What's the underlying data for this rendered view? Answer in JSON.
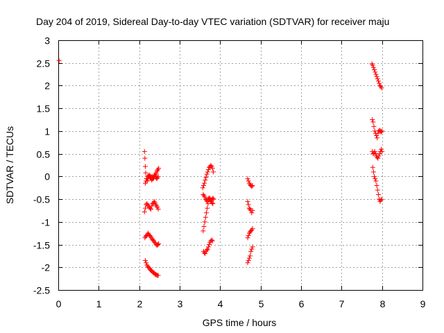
{
  "chart_data": {
    "type": "scatter",
    "title": "Day 204 of 2019, Sidereal Day-to-day VTEC variation (SDTVAR) for receiver maju",
    "xlabel": "GPS time / hours",
    "ylabel": "SDTVAR / TECUs",
    "xlim": [
      0,
      9
    ],
    "ylim": [
      -2.5,
      3
    ],
    "xticks": [
      0,
      1,
      2,
      3,
      4,
      5,
      6,
      7,
      8,
      9
    ],
    "yticks": [
      -2.5,
      -2,
      -1.5,
      -1,
      -0.5,
      0,
      0.5,
      1,
      1.5,
      2,
      2.5,
      3
    ],
    "xtick_labels": [
      "0",
      "1",
      "2",
      "3",
      "4",
      "5",
      "6",
      "7",
      "8",
      "9"
    ],
    "ytick_labels": [
      "-2.5",
      "-2",
      "-1.5",
      "-1",
      "-0.5",
      "0",
      "0.5",
      "1",
      "1.5",
      "2",
      "2.5",
      "3"
    ],
    "grid": true,
    "marker_color": "#ff0000",
    "marker": "+",
    "series": [
      {
        "name": "SDTVAR",
        "x": [
          0.02,
          2.13,
          2.14,
          2.15,
          2.16,
          2.18,
          2.2,
          2.22,
          2.24,
          2.26,
          2.28,
          2.3,
          2.32,
          2.34,
          2.36,
          2.38,
          2.4,
          2.42,
          2.44,
          2.46,
          2.48,
          2.13,
          2.15,
          2.17,
          2.19,
          2.21,
          2.23,
          2.25,
          2.27,
          2.29,
          2.31,
          2.33,
          2.35,
          2.37,
          2.39,
          2.41,
          2.43,
          2.45,
          2.47,
          2.14,
          2.16,
          2.18,
          2.2,
          2.22,
          2.24,
          2.26,
          2.28,
          2.3,
          2.32,
          2.34,
          2.36,
          2.38,
          2.4,
          2.42,
          2.44,
          2.46,
          2.48,
          2.15,
          2.17,
          2.19,
          2.21,
          2.23,
          2.25,
          2.27,
          2.29,
          2.31,
          2.33,
          2.35,
          2.37,
          2.39,
          2.41,
          2.43,
          2.45,
          2.47,
          2.15,
          2.17,
          2.19,
          2.21,
          2.23,
          2.25,
          2.27,
          2.29,
          2.31,
          2.33,
          2.35,
          2.37,
          2.39,
          2.41,
          2.43,
          2.45,
          2.47,
          3.57,
          3.59,
          3.61,
          3.63,
          3.65,
          3.67,
          3.69,
          3.71,
          3.73,
          3.75,
          3.77,
          3.79,
          3.81,
          3.83,
          3.58,
          3.6,
          3.62,
          3.64,
          3.66,
          3.68,
          3.7,
          3.72,
          3.74,
          3.76,
          3.78,
          3.8,
          3.82,
          3.84,
          3.58,
          3.6,
          3.62,
          3.64,
          3.66,
          3.68,
          3.7,
          3.72,
          3.74,
          3.76,
          3.78,
          3.8,
          3.82,
          3.59,
          3.61,
          3.63,
          3.65,
          3.67,
          3.69,
          3.71,
          3.73,
          3.75,
          3.77,
          3.79,
          3.81,
          4.68,
          4.7,
          4.72,
          4.74,
          4.76,
          4.78,
          4.8,
          4.68,
          4.7,
          4.72,
          4.74,
          4.76,
          4.78,
          4.8,
          4.68,
          4.7,
          4.72,
          4.74,
          4.76,
          4.78,
          4.8,
          4.68,
          4.7,
          4.72,
          4.74,
          4.76,
          4.78,
          4.8,
          7.75,
          7.77,
          7.79,
          7.81,
          7.83,
          7.85,
          7.87,
          7.89,
          7.91,
          7.93,
          7.95,
          7.97,
          7.99,
          7.76,
          7.78,
          7.8,
          7.82,
          7.84,
          7.86,
          7.88,
          7.9,
          7.92,
          7.94,
          7.96,
          7.98,
          8.0,
          7.76,
          7.78,
          7.8,
          7.82,
          7.84,
          7.86,
          7.88,
          7.9,
          7.92,
          7.94,
          7.96,
          7.98,
          8.0,
          7.77,
          7.79,
          7.81,
          7.83,
          7.85,
          7.87,
          7.89,
          7.91,
          7.93,
          7.95,
          7.97,
          7.99
        ],
        "y": [
          2.55,
          0.55,
          0.4,
          0.22,
          0.08,
          -0.05,
          -0.1,
          -0.05,
          0.0,
          0.03,
          0.0,
          -0.03,
          0.0,
          -0.05,
          -0.02,
          0.02,
          0.05,
          0.08,
          0.12,
          0.15,
          0.18,
          -0.78,
          -0.7,
          -0.62,
          -0.6,
          -0.62,
          -0.65,
          -0.68,
          -0.7,
          -0.72,
          -0.65,
          -0.6,
          -0.58,
          -0.55,
          -0.58,
          -0.62,
          -0.65,
          -0.68,
          -0.72,
          -1.35,
          -1.32,
          -1.3,
          -1.28,
          -1.25,
          -1.28,
          -1.3,
          -1.32,
          -1.35,
          -1.38,
          -1.4,
          -1.42,
          -1.45,
          -1.47,
          -1.5,
          -1.52,
          -1.5,
          -1.48,
          -1.85,
          -1.9,
          -1.95,
          -1.98,
          -2.0,
          -2.02,
          -2.05,
          -2.07,
          -2.08,
          -2.1,
          -2.12,
          -2.13,
          -2.15,
          -2.16,
          -2.17,
          -2.18,
          -2.18,
          -0.15,
          -0.1,
          -0.05,
          0.0,
          0.02,
          0.0,
          -0.02,
          -0.05,
          -0.08,
          -0.05,
          -0.02,
          0.0,
          0.02,
          -0.02,
          -0.05,
          -0.03,
          0.0,
          -0.25,
          -0.2,
          -0.15,
          -0.08,
          -0.02,
          0.05,
          0.1,
          0.15,
          0.2,
          0.22,
          0.24,
          0.22,
          0.18,
          0.1,
          -0.4,
          -0.42,
          -0.45,
          -0.5,
          -0.52,
          -0.55,
          -0.5,
          -0.48,
          -0.5,
          -0.52,
          -0.55,
          -0.5,
          -0.48,
          -0.5,
          -1.2,
          -1.1,
          -1.0,
          -0.9,
          -0.8,
          -0.7,
          -0.6,
          -0.52,
          -0.48,
          -0.5,
          -0.55,
          -0.58,
          -0.6,
          -1.65,
          -1.68,
          -1.7,
          -1.65,
          -1.62,
          -1.6,
          -1.55,
          -1.5,
          -1.45,
          -1.42,
          -1.4,
          -1.42,
          -0.05,
          -0.1,
          -0.15,
          -0.18,
          -0.2,
          -0.22,
          -0.2,
          -0.55,
          -0.62,
          -0.7,
          -0.72,
          -0.75,
          -0.8,
          -0.75,
          -1.35,
          -1.3,
          -1.25,
          -1.22,
          -1.2,
          -1.18,
          -1.15,
          -1.9,
          -1.85,
          -1.8,
          -1.75,
          -1.65,
          -1.6,
          -1.55,
          2.48,
          2.45,
          2.4,
          2.35,
          2.3,
          2.25,
          2.2,
          2.15,
          2.1,
          2.05,
          2.0,
          1.98,
          1.95,
          1.25,
          1.2,
          1.1,
          1.0,
          0.95,
          0.9,
          0.85,
          0.95,
          1.0,
          1.02,
          1.0,
          0.98,
          1.0,
          0.55,
          0.5,
          0.52,
          0.55,
          0.5,
          0.45,
          0.42,
          0.4,
          0.45,
          0.5,
          0.55,
          0.6,
          0.55,
          0.2,
          0.1,
          0.0,
          -0.05,
          -0.1,
          -0.2,
          -0.3,
          -0.4,
          -0.5,
          -0.55,
          -0.52,
          -0.5
        ]
      }
    ]
  }
}
